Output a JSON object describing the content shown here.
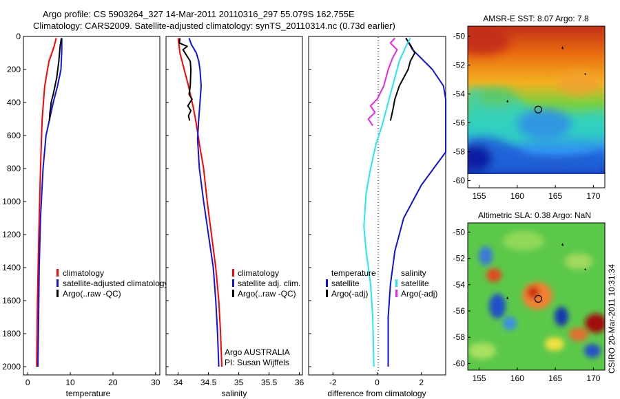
{
  "header": {
    "line1": "Argo profile: CS 5903264_327 14-Mar-2011 20110316_297 55.079S 162.755E",
    "line2": "Climatology: CARS2009. Satellite-adjusted climatology: synTS_20110314.nc (0.73d earlier)"
  },
  "colors": {
    "red": "#ff0000",
    "blue": "#1010e0",
    "black": "#000000",
    "cyan": "#22e8f0",
    "magenta": "#ee22ee"
  },
  "chart_data": [
    {
      "type": "line",
      "id": "temperature",
      "xlabel": "temperature",
      "xlim": [
        -1,
        31
      ],
      "ylim": [
        2050,
        0
      ],
      "xticks": [
        0,
        10,
        20,
        30
      ],
      "yticks": [
        0,
        200,
        400,
        600,
        800,
        1000,
        1200,
        1400,
        1600,
        1800,
        2000
      ],
      "legend": {
        "position": "lower-right",
        "entries": [
          "climatology",
          "satellite-adjusted climatology",
          "Argo(..raw -QC)"
        ]
      },
      "series": [
        {
          "name": "climatology",
          "color": "red",
          "points": [
            [
              6.7,
              10
            ],
            [
              6.2,
              60
            ],
            [
              5.0,
              150
            ],
            [
              4.0,
              300
            ],
            [
              3.4,
              500
            ],
            [
              3.0,
              800
            ],
            [
              2.6,
              1200
            ],
            [
              2.3,
              1600
            ],
            [
              2.1,
              2000
            ]
          ]
        },
        {
          "name": "satellite-adjusted climatology",
          "color": "blue",
          "points": [
            [
              8.0,
              10
            ],
            [
              8.0,
              80
            ],
            [
              7.8,
              200
            ],
            [
              7.0,
              300
            ],
            [
              6.0,
              400
            ],
            [
              4.3,
              600
            ],
            [
              3.6,
              800
            ],
            [
              3.0,
              1100
            ],
            [
              2.7,
              1400
            ],
            [
              2.5,
              1800
            ],
            [
              2.4,
              2000
            ]
          ]
        },
        {
          "name": "Argo(..raw -QC)",
          "color": "black",
          "points": [
            [
              7.9,
              10
            ],
            [
              7.6,
              60
            ],
            [
              7.3,
              150
            ],
            [
              6.8,
              250
            ],
            [
              6.0,
              350
            ],
            [
              5.5,
              400
            ],
            [
              5.4,
              430
            ],
            [
              5.2,
              460
            ],
            [
              5.1,
              510
            ]
          ]
        }
      ]
    },
    {
      "type": "line",
      "id": "salinity",
      "xlabel": "salinity",
      "xlim": [
        33.8,
        36.05
      ],
      "ylim": [
        2050,
        0
      ],
      "xticks": [
        34,
        34.5,
        35,
        35.5,
        36
      ],
      "yticks": [
        0,
        200,
        400,
        600,
        800,
        1000,
        1200,
        1400,
        1600,
        1800,
        2000
      ],
      "legend": {
        "position": "lower-right",
        "entries": [
          "climatology",
          "satellite adj. clim.",
          "Argo(..raw -QC)"
        ]
      },
      "annotations": [
        "Argo AUSTRALIA",
        "PI: Susan Wijffels"
      ],
      "series": [
        {
          "name": "climatology",
          "color": "red",
          "points": [
            [
              34.0,
              10
            ],
            [
              34.03,
              100
            ],
            [
              34.1,
              200
            ],
            [
              34.17,
              300
            ],
            [
              34.25,
              430
            ],
            [
              34.3,
              530
            ],
            [
              34.35,
              650
            ],
            [
              34.42,
              800
            ],
            [
              34.48,
              1000
            ],
            [
              34.55,
              1200
            ],
            [
              34.62,
              1400
            ],
            [
              34.67,
              1600
            ],
            [
              34.7,
              1800
            ],
            [
              34.72,
              2000
            ]
          ]
        },
        {
          "name": "satellite adj. clim.",
          "color": "blue",
          "points": [
            [
              34.18,
              10
            ],
            [
              34.22,
              50
            ],
            [
              34.3,
              100
            ],
            [
              34.34,
              150
            ],
            [
              34.36,
              200
            ],
            [
              34.38,
              300
            ],
            [
              34.36,
              400
            ],
            [
              34.34,
              500
            ],
            [
              34.32,
              620
            ],
            [
              34.35,
              800
            ],
            [
              34.42,
              1000
            ],
            [
              34.5,
              1200
            ],
            [
              34.58,
              1400
            ],
            [
              34.62,
              1600
            ],
            [
              34.65,
              1800
            ],
            [
              34.67,
              2000
            ]
          ]
        },
        {
          "name": "Argo(..raw -QC)",
          "color": "black",
          "points": [
            [
              34.03,
              10
            ],
            [
              34.02,
              40
            ],
            [
              34.15,
              60
            ],
            [
              34.08,
              80
            ],
            [
              34.2,
              150
            ],
            [
              34.21,
              200
            ],
            [
              34.2,
              300
            ],
            [
              34.18,
              350
            ],
            [
              34.23,
              380
            ],
            [
              34.16,
              420
            ],
            [
              34.21,
              450
            ],
            [
              34.17,
              480
            ],
            [
              34.19,
              510
            ]
          ]
        }
      ]
    },
    {
      "type": "line",
      "id": "difference",
      "xlabel": "difference from climatology",
      "xlim": [
        -3.1,
        3.1
      ],
      "ylim": [
        2050,
        0
      ],
      "xticks": [
        -2,
        0,
        2
      ],
      "yticks": [
        0,
        200,
        400,
        600,
        800,
        1000,
        1200,
        1400,
        1600,
        1800,
        2000
      ],
      "legend": {
        "position": "lower-center",
        "left_heading": "temperature",
        "right_heading": "salinity",
        "left_entries": [
          "satellite",
          "Argo(-adj)"
        ],
        "right_entries": [
          "satellite",
          "Argo(-adj)"
        ]
      },
      "series": [
        {
          "name": "temperature satellite",
          "color": "blue",
          "points": [
            [
              1.3,
              10
            ],
            [
              1.6,
              80
            ],
            [
              2.5,
              200
            ],
            [
              3.0,
              300
            ],
            [
              3.1,
              380
            ],
            [
              3.1,
              700
            ],
            [
              2.0,
              900
            ],
            [
              1.2,
              1100
            ],
            [
              0.8,
              1300
            ],
            [
              0.6,
              1500
            ],
            [
              0.5,
              1700
            ],
            [
              0.5,
              2000
            ]
          ]
        },
        {
          "name": "temperature Argo(-adj)",
          "color": "black",
          "points": [
            [
              1.3,
              10
            ],
            [
              1.5,
              50
            ],
            [
              1.7,
              100
            ],
            [
              1.5,
              150
            ],
            [
              1.4,
              200
            ],
            [
              1.2,
              250
            ],
            [
              1.0,
              300
            ],
            [
              0.8,
              380
            ],
            [
              0.7,
              450
            ],
            [
              0.6,
              510
            ]
          ]
        },
        {
          "name": "salinity satellite",
          "color": "cyan",
          "points": [
            [
              1.5,
              10
            ],
            [
              1.3,
              60
            ],
            [
              1.0,
              150
            ],
            [
              0.8,
              250
            ],
            [
              0.5,
              400
            ],
            [
              0.2,
              550
            ],
            [
              -0.05,
              650
            ],
            [
              -0.3,
              800
            ],
            [
              -0.5,
              950
            ],
            [
              -0.6,
              1150
            ],
            [
              -0.5,
              1300
            ],
            [
              -0.3,
              1500
            ],
            [
              -0.2,
              1700
            ],
            [
              -0.15,
              2000
            ]
          ]
        },
        {
          "name": "salinity Argo(-adj)",
          "color": "magenta",
          "points": [
            [
              0.8,
              10
            ],
            [
              0.6,
              40
            ],
            [
              0.9,
              80
            ],
            [
              0.7,
              130
            ],
            [
              0.5,
              200
            ],
            [
              0.3,
              300
            ],
            [
              0.0,
              380
            ],
            [
              -0.3,
              420
            ],
            [
              -0.1,
              460
            ],
            [
              -0.4,
              500
            ],
            [
              -0.2,
              540
            ]
          ]
        }
      ]
    }
  ],
  "maps": [
    {
      "id": "sst",
      "title": "AMSR-E SST: 8.07 Argo: 7.8",
      "xticks": [
        155,
        160,
        165,
        170
      ],
      "yticks": [
        -50,
        -52,
        -54,
        -56,
        -58,
        -60
      ],
      "xlim": [
        153.5,
        171.5
      ],
      "ylim": [
        -60.5,
        -49.3
      ],
      "marker": [
        162.755,
        -55.079
      ]
    },
    {
      "id": "sla",
      "title": "Altimetric SLA: 0.38 Argo: NaN",
      "xticks": [
        155,
        160,
        165,
        170
      ],
      "yticks": [
        -50,
        -52,
        -54,
        -56,
        -58,
        -60
      ],
      "xlim": [
        153.5,
        171.5
      ],
      "ylim": [
        -60.5,
        -49.3
      ],
      "marker": [
        162.755,
        -55.079
      ]
    }
  ],
  "credit": "CSIRO 20-Mar-2011 10:31:34"
}
